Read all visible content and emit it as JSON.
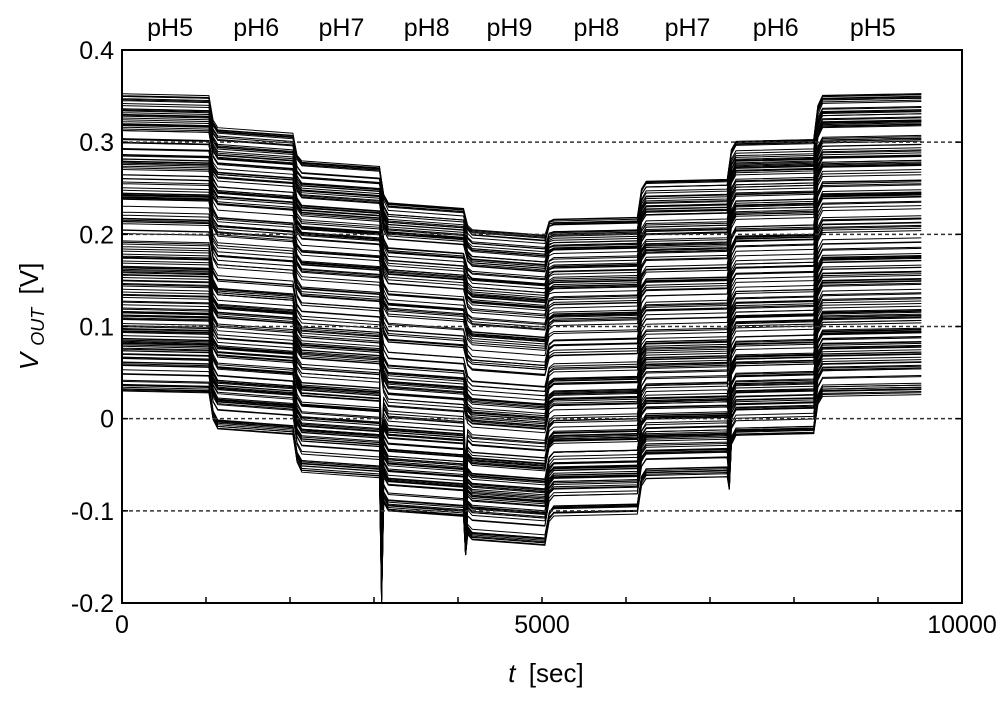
{
  "chart_data": {
    "type": "line",
    "phase_labels": [
      "pH5",
      "pH6",
      "pH7",
      "pH8",
      "pH9",
      "pH8",
      "pH7",
      "pH6",
      "pH5"
    ],
    "phase_boundaries_sec": [
      1050,
      2050,
      3080,
      4080,
      5050,
      6150,
      7220,
      8250
    ],
    "x": {
      "label_italic": "t",
      "label_rest": "[sec]",
      "lim": [
        0,
        10000
      ],
      "ticks": [
        0,
        5000,
        10000
      ],
      "data_end": 9530
    },
    "y": {
      "label_main": "V",
      "label_sub": "OUT",
      "label_rest": "[V]",
      "lim": [
        -0.2,
        0.4
      ],
      "ticks": [
        0.4,
        0.3,
        0.2,
        0.1,
        0,
        -0.1,
        -0.2
      ],
      "tick_labels": [
        "0.4",
        "0.3",
        "0.2",
        "0.1",
        "0",
        "-0.1",
        "-0.2"
      ]
    },
    "grid": {
      "horizontal_dotted_at": [
        0.3,
        0.2,
        0.1,
        0,
        -0.1
      ]
    },
    "series_summary": {
      "count": 180,
      "phase_top": [
        0.35,
        0.31,
        0.275,
        0.23,
        0.2,
        0.22,
        0.26,
        0.305,
        0.355
      ],
      "phase_bottom": [
        0.03,
        -0.015,
        -0.06,
        -0.105,
        -0.135,
        -0.1,
        -0.06,
        -0.015,
        0.03
      ],
      "spikes": [
        {
          "t": 3080,
          "v_min": -0.2
        },
        {
          "t": 4080,
          "v_min": -0.148
        },
        {
          "t": 7220,
          "v_min": -0.077
        }
      ]
    },
    "colors": {
      "line": "#000000",
      "grid": "#333333",
      "background": "#ffffff"
    }
  }
}
